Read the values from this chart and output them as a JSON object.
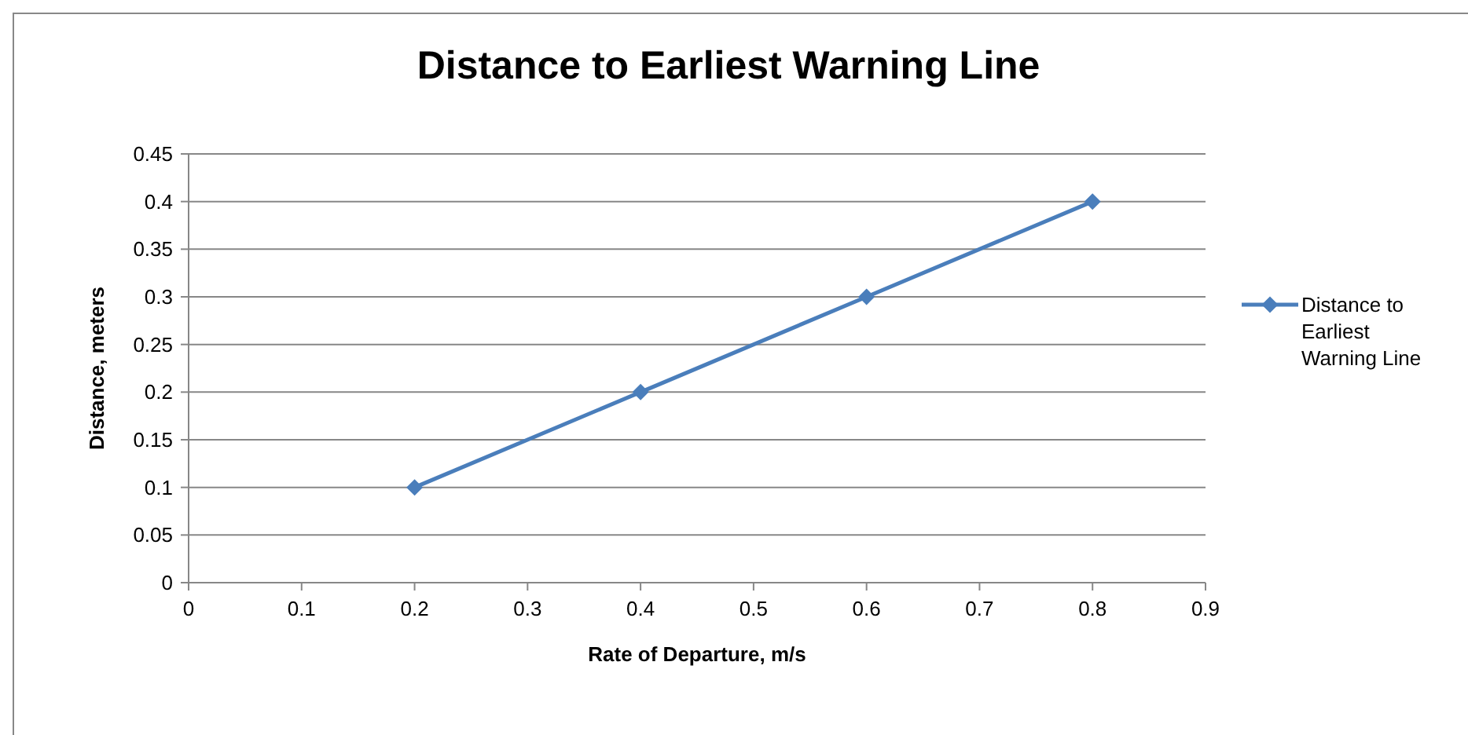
{
  "chart_data": {
    "type": "line",
    "title": "Distance to Earliest Warning Line",
    "xlabel": "Rate of Departure, m/s",
    "ylabel": "Distance, meters",
    "x": [
      0.2,
      0.4,
      0.6,
      0.8
    ],
    "series": [
      {
        "name": "Distance to Earliest Warning Line",
        "color": "#4a7ebb",
        "values": [
          0.1,
          0.2,
          0.3,
          0.4
        ]
      }
    ],
    "xlim": [
      0,
      0.9
    ],
    "xticks": [
      0,
      0.1,
      0.2,
      0.3,
      0.4,
      0.5,
      0.6,
      0.7,
      0.8,
      0.9
    ],
    "ylim": [
      0,
      0.45
    ],
    "yticks": [
      0,
      0.05,
      0.1,
      0.15,
      0.2,
      0.25,
      0.3,
      0.35,
      0.4,
      0.45
    ],
    "grid": "y",
    "legend": "right",
    "marker": "diamond",
    "line_style": "solid"
  }
}
